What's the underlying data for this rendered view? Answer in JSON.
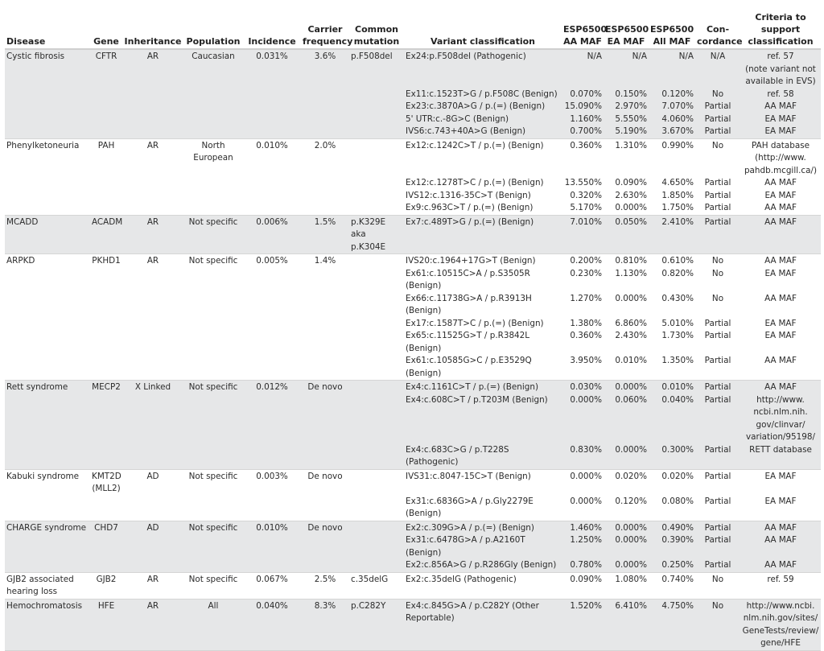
{
  "headers": [
    "Disease",
    "Gene",
    "Inheritance",
    "Population",
    "Incidence",
    "Carrier\nfrequency",
    "Common\nmutation",
    "Variant classification",
    "ESP6500\nAA MAF",
    "ESP6500\nEA MAF",
    "ESP6500\nAll MAF",
    "Con-\ncordance",
    "Criteria to\nsupport\nclassification"
  ],
  "groups": [
    {
      "disease": "Cystic fibrosis",
      "gene": "CFTR",
      "inheritance": "AR",
      "population": "Caucasian",
      "incidence": "0.031%",
      "carrier": "3.6%",
      "common": "p.F508del",
      "variants": [
        [
          "Ex24:p.F508del (Pathogenic)",
          "N/A",
          "N/A",
          "N/A",
          "N/A",
          "ref. 57\n(note variant not\navailable in EVS)"
        ],
        [
          "Ex11:c.1523T>G / p.F508C (Benign)",
          "0.070%",
          "0.150%",
          "0.120%",
          "No",
          "ref. 58"
        ],
        [
          "Ex23:c.3870A>G / p.(=) (Benign)",
          "15.090%",
          "2.970%",
          "7.070%",
          "Partial",
          "AA MAF"
        ],
        [
          "5' UTR:c.-8G>C (Benign)",
          "1.160%",
          "5.550%",
          "4.060%",
          "Partial",
          "EA MAF"
        ],
        [
          "IVS6:c.743+40A>G (Benign)",
          "0.700%",
          "5.190%",
          "3.670%",
          "Partial",
          "EA MAF"
        ]
      ]
    },
    {
      "disease": "Phenylketoneuria",
      "gene": "PAH",
      "inheritance": "AR",
      "population": "North\nEuropean",
      "incidence": "0.010%",
      "carrier": "2.0%",
      "common": "",
      "variants": [
        [
          "Ex12:c.1242C>T / p.(=) (Benign)",
          "0.360%",
          "1.310%",
          "0.990%",
          "No",
          "PAH database\n(http://www.\npahdb.mcgill.ca/)"
        ],
        [
          "Ex12:c.1278T>C / p.(=) (Benign)",
          "13.550%",
          "0.090%",
          "4.650%",
          "Partial",
          "AA MAF"
        ],
        [
          "IVS12:c.1316-35C>T (Benign)",
          "0.320%",
          "2.630%",
          "1.850%",
          "Partial",
          "EA MAF"
        ],
        [
          "Ex9:c.963C>T / p.(=) (Benign)",
          "5.170%",
          "0.000%",
          "1.750%",
          "Partial",
          "AA MAF"
        ]
      ]
    },
    {
      "disease": "MCADD",
      "gene": "ACADM",
      "inheritance": "AR",
      "population": "Not specific",
      "incidence": "0.006%",
      "carrier": "1.5%",
      "common": "p.K329E\naka p.K304E",
      "variants": [
        [
          "Ex7:c.489T>G / p.(=) (Benign)",
          "7.010%",
          "0.050%",
          "2.410%",
          "Partial",
          "AA MAF"
        ]
      ]
    },
    {
      "disease": "ARPKD",
      "gene": "PKHD1",
      "inheritance": "AR",
      "population": "Not specific",
      "incidence": "0.005%",
      "carrier": "1.4%",
      "common": "",
      "variants": [
        [
          "IVS20:c.1964+17G>T (Benign)",
          "0.200%",
          "0.810%",
          "0.610%",
          "No",
          "AA MAF"
        ],
        [
          "Ex61:c.10515C>A / p.S3505R (Benign)",
          "0.230%",
          "1.130%",
          "0.820%",
          "No",
          "EA MAF"
        ],
        [
          "Ex66:c.11738G>A / p.R3913H (Benign)",
          "1.270%",
          "0.000%",
          "0.430%",
          "No",
          "AA MAF"
        ],
        [
          "Ex17:c.1587T>C / p.(=) (Benign)",
          "1.380%",
          "6.860%",
          "5.010%",
          "Partial",
          "EA MAF"
        ],
        [
          "Ex65:c.11525G>T / p.R3842L (Benign)",
          "0.360%",
          "2.430%",
          "1.730%",
          "Partial",
          "EA MAF"
        ],
        [
          "Ex61:c.10585G>C / p.E3529Q (Benign)",
          "3.950%",
          "0.010%",
          "1.350%",
          "Partial",
          "AA MAF"
        ]
      ]
    },
    {
      "disease": "Rett syndrome",
      "gene": "MECP2",
      "inheritance": "X Linked",
      "population": "Not specific",
      "incidence": "0.012%",
      "carrier": "De novo",
      "common": "",
      "variants": [
        [
          "Ex4:c.1161C>T / p.(=) (Benign)",
          "0.030%",
          "0.000%",
          "0.010%",
          "Partial",
          "AA MAF"
        ],
        [
          "Ex4:c.608C>T / p.T203M (Benign)",
          "0.000%",
          "0.060%",
          "0.040%",
          "Partial",
          "http://www.\nncbi.nlm.nih.\ngov/clinvar/\nvariation/95198/"
        ],
        [
          "Ex4:c.683C>G / p.T228S (Pathogenic)",
          "0.830%",
          "0.000%",
          "0.300%",
          "Partial",
          "RETT database"
        ]
      ]
    },
    {
      "disease": "Kabuki syndrome",
      "gene": "KMT2D\n(MLL2)",
      "inheritance": "AD",
      "population": "Not specific",
      "incidence": "0.003%",
      "carrier": "De novo",
      "common": "",
      "variants": [
        [
          "IVS31:c.8047-15C>T (Benign)",
          "0.000%",
          "0.020%",
          "0.020%",
          "Partial",
          "EA MAF"
        ],
        [
          "Ex31:c.6836G>A / p.Gly2279E (Benign)",
          "0.000%",
          "0.120%",
          "0.080%",
          "Partial",
          "EA MAF"
        ]
      ]
    },
    {
      "disease": "CHARGE syndrome",
      "gene": "CHD7",
      "inheritance": "AD",
      "population": "Not specific",
      "incidence": "0.010%",
      "carrier": "De novo",
      "common": "",
      "variants": [
        [
          "Ex2:c.309G>A / p.(=) (Benign)",
          "1.460%",
          "0.000%",
          "0.490%",
          "Partial",
          "AA MAF"
        ],
        [
          "Ex31:c.6478G>A / p.A2160T (Benign)",
          "1.250%",
          "0.000%",
          "0.390%",
          "Partial",
          "AA MAF"
        ],
        [
          "Ex2:c.856A>G / p.R286Gly (Benign)",
          "0.780%",
          "0.000%",
          "0.250%",
          "Partial",
          "AA MAF"
        ]
      ]
    },
    {
      "disease": "GJB2 associated\nhearing loss",
      "gene": "GJB2",
      "inheritance": "AR",
      "population": "Not specific",
      "incidence": "0.067%",
      "carrier": "2.5%",
      "common": "c.35delG",
      "variants": [
        [
          "Ex2:c.35delG (Pathogenic)",
          "0.090%",
          "1.080%",
          "0.740%",
          "No",
          "ref. 59"
        ]
      ]
    },
    {
      "disease": "Hemochromatosis",
      "gene": "HFE",
      "inheritance": "AR",
      "population": "All",
      "incidence": "0.040%",
      "carrier": "8.3%",
      "common": "p.C282Y",
      "variants": [
        [
          "Ex4:c.845G>A / p.C282Y (Other\nReportable)",
          "1.520%",
          "6.410%",
          "4.750%",
          "No",
          "http://www.ncbi.\nnlm.nih.gov/sites/\nGeneTests/review/\ngene/HFE"
        ]
      ]
    }
  ]
}
